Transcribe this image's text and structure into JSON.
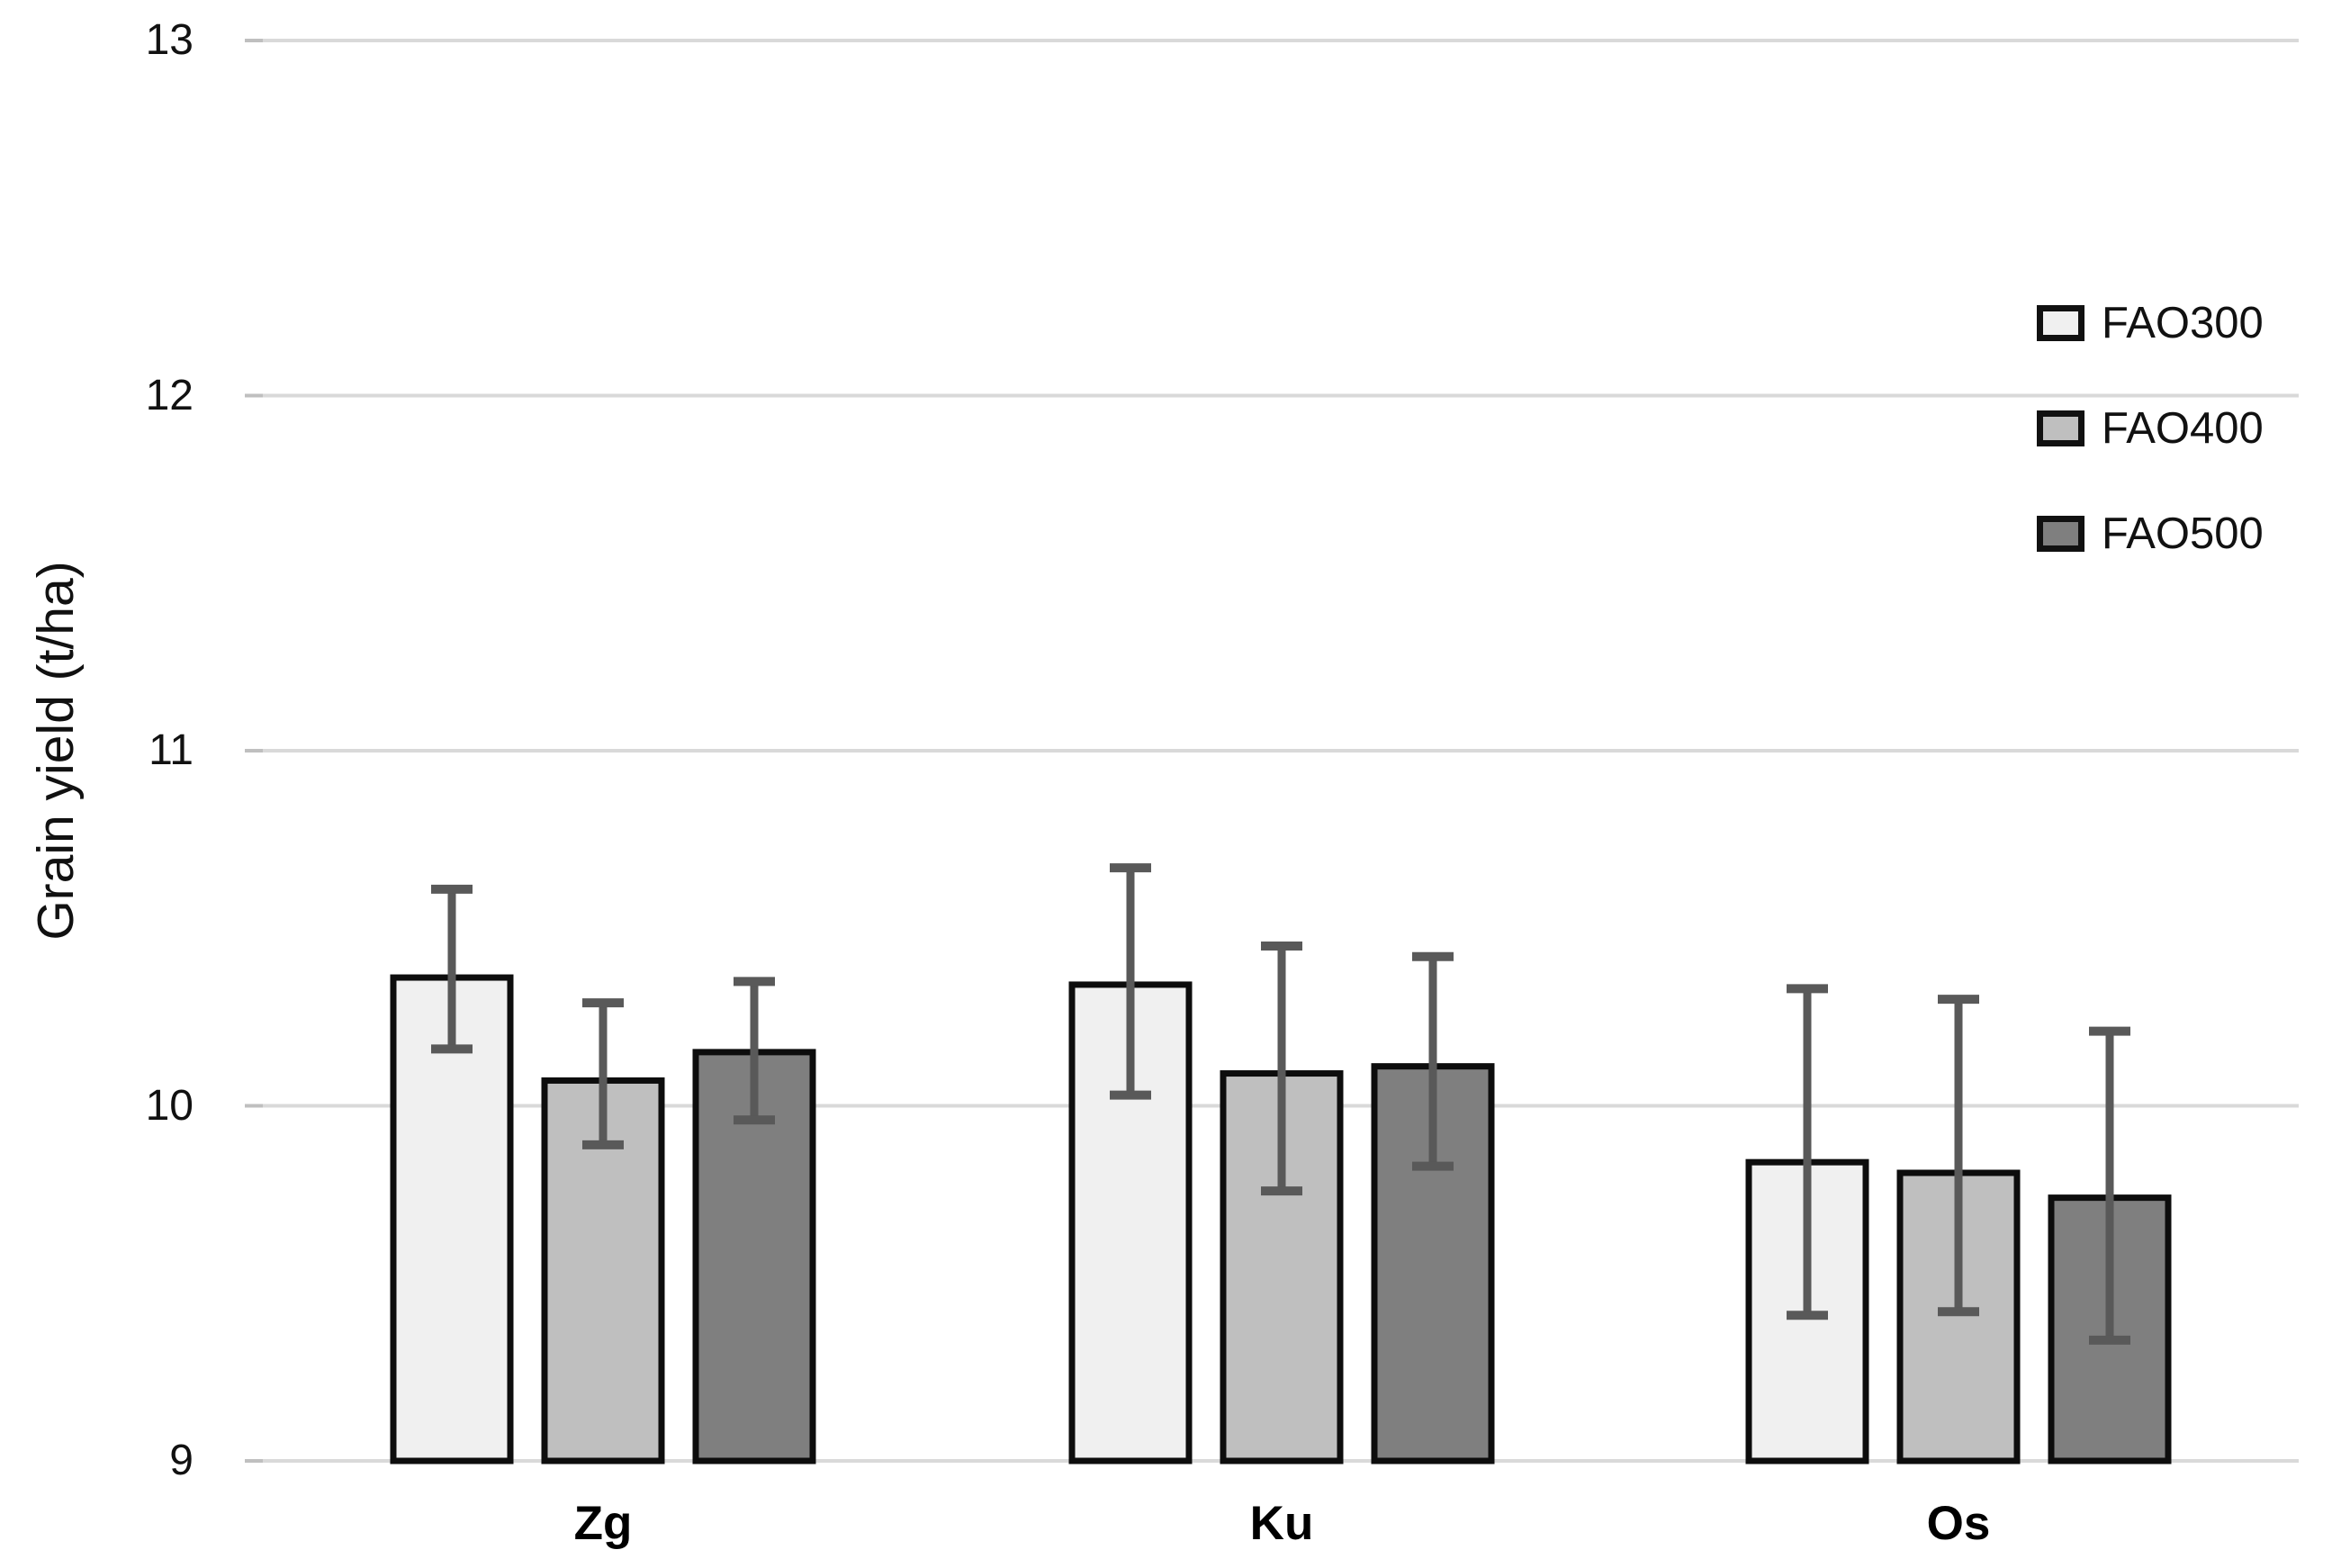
{
  "chart_data": {
    "type": "bar",
    "title": "",
    "xlabel": "",
    "ylabel": "Grain yield (t/ha)",
    "categories": [
      "Zg",
      "Ku",
      "Os"
    ],
    "series": [
      {
        "name": "FAO300",
        "color": "#f0f0f0",
        "values": [
          10.37,
          10.35,
          9.85
        ],
        "err_low": [
          10.16,
          10.03,
          9.41
        ],
        "err_high": [
          10.61,
          10.67,
          10.33
        ]
      },
      {
        "name": "FAO400",
        "color": "#bfbfbf",
        "values": [
          10.08,
          10.1,
          9.82
        ],
        "err_low": [
          9.89,
          9.76,
          9.42
        ],
        "err_high": [
          10.29,
          10.45,
          10.3
        ]
      },
      {
        "name": "FAO500",
        "color": "#7f7f7f",
        "values": [
          10.16,
          10.12,
          9.75
        ],
        "err_low": [
          9.96,
          9.83,
          9.34
        ],
        "err_high": [
          10.35,
          10.42,
          10.21
        ]
      }
    ],
    "ylim": [
      9,
      13
    ],
    "yticks": [
      9,
      10,
      11,
      12,
      13
    ],
    "grid": true,
    "legend_position": "right-top",
    "colors": {
      "gridline": "#d9d9d9",
      "tick_mark": "#bfbfbf",
      "bar_border": "#0d0d0d",
      "error_bar": "#595959",
      "text": "#111111",
      "background": "#ffffff"
    }
  }
}
